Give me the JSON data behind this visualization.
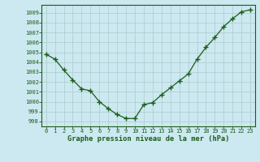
{
  "x": [
    0,
    1,
    2,
    3,
    4,
    5,
    6,
    7,
    8,
    9,
    10,
    11,
    12,
    13,
    14,
    15,
    16,
    17,
    18,
    19,
    20,
    21,
    22,
    23
  ],
  "y": [
    1004.8,
    1004.3,
    1003.2,
    1002.2,
    1001.3,
    1001.1,
    1000.0,
    999.3,
    998.7,
    998.3,
    998.3,
    999.7,
    999.9,
    1000.7,
    1001.4,
    1002.1,
    1002.8,
    1004.3,
    1005.5,
    1006.5,
    1007.6,
    1008.4,
    1009.1,
    1009.3
  ],
  "bg_color": "#cce8f0",
  "line_color": "#1a5c1a",
  "marker": "+",
  "grid_color": "#aacccc",
  "ylabel_values": [
    998,
    999,
    1000,
    1001,
    1002,
    1003,
    1004,
    1005,
    1006,
    1007,
    1008,
    1009
  ],
  "ylim": [
    997.5,
    1009.8
  ],
  "xlim": [
    -0.5,
    23.5
  ],
  "xlabel": "Graphe pression niveau de la mer (hPa)",
  "xlabel_color": "#1a5c1a",
  "tick_fontsize": 5.0,
  "label_fontsize": 6.2
}
